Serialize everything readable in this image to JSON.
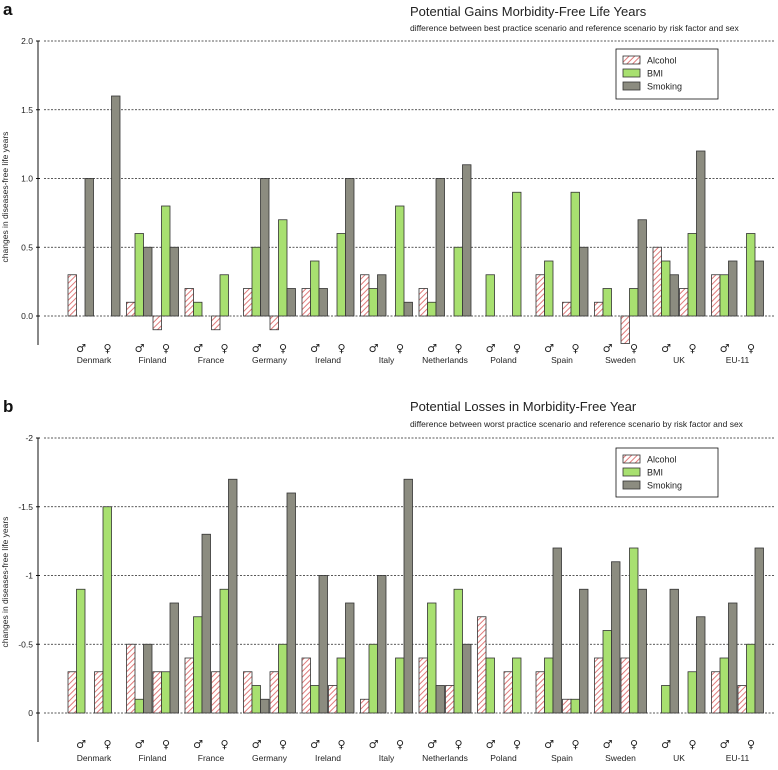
{
  "chart_data": [
    {
      "type": "bar",
      "panel_label": "a",
      "title": "Potential Gains Morbidity-Free Life Years",
      "subtitle": "difference between best practice scenario and reference scenario by risk factor and sex",
      "ylabel": "changes in diseases-free life years",
      "ylim": [
        -0.2,
        2.0
      ],
      "yticks": [
        0.0,
        0.5,
        1.0,
        1.5,
        2.0
      ],
      "ytick_labels": [
        "0.0",
        "0.5",
        "1.0",
        "1.5",
        "2.0"
      ],
      "categories": [
        "Denmark",
        "Finland",
        "France",
        "Germany",
        "Ireland",
        "Italy",
        "Netherlands",
        "Poland",
        "Spain",
        "Sweden",
        "UK",
        "EU-11"
      ],
      "sex_labels": [
        "♂",
        "♀"
      ],
      "legend": [
        "Alcohol",
        "BMI",
        "Smoking"
      ],
      "series": [
        {
          "name": "Alcohol",
          "values": [
            [
              0.3,
              0
            ],
            [
              0.1,
              -0.1
            ],
            [
              0.2,
              -0.1
            ],
            [
              0.2,
              -0.1
            ],
            [
              0.2,
              0
            ],
            [
              0.3,
              0
            ],
            [
              0.2,
              0
            ],
            [
              0,
              0
            ],
            [
              0.3,
              0.1
            ],
            [
              0.1,
              -0.2
            ],
            [
              0.5,
              0.2
            ],
            [
              0.3,
              0
            ]
          ]
        },
        {
          "name": "BMI",
          "values": [
            [
              0,
              0
            ],
            [
              0.6,
              0.8
            ],
            [
              0.1,
              0.3
            ],
            [
              0.5,
              0.7
            ],
            [
              0.4,
              0.6
            ],
            [
              0.2,
              0.8
            ],
            [
              0.1,
              0.5
            ],
            [
              0.3,
              0.9
            ],
            [
              0.4,
              0.9
            ],
            [
              0.2,
              0.2
            ],
            [
              0.4,
              0.6
            ],
            [
              0.3,
              0.6
            ]
          ]
        },
        {
          "name": "Smoking",
          "values": [
            [
              1.0,
              1.6
            ],
            [
              0.5,
              0.5
            ],
            [
              0,
              0
            ],
            [
              1.0,
              0.2
            ],
            [
              0.2,
              1.0
            ],
            [
              0.3,
              0.1
            ],
            [
              1.0,
              1.1
            ],
            [
              0,
              0
            ],
            [
              0,
              0.5
            ],
            [
              0,
              0.7
            ],
            [
              0.3,
              1.2
            ],
            [
              0.4,
              0.4
            ]
          ]
        }
      ]
    },
    {
      "type": "bar",
      "panel_label": "b",
      "title": "Potential Losses in Morbidity-Free Year",
      "subtitle": "difference between worst practice scenario and reference scenario by risk factor and sex",
      "ylabel": "changes in diseases-free life years",
      "ylim": [
        0.2,
        -2.0
      ],
      "yticks": [
        0,
        -0.5,
        -1,
        -1.5,
        -2
      ],
      "ytick_labels": [
        "0",
        "-0.5",
        "-1",
        "-1.5",
        "-2"
      ],
      "categories": [
        "Denmark",
        "Finland",
        "France",
        "Germany",
        "Ireland",
        "Italy",
        "Netherlands",
        "Poland",
        "Spain",
        "Sweden",
        "UK",
        "EU-11"
      ],
      "sex_labels": [
        "♂",
        "♀"
      ],
      "legend": [
        "Alcohol",
        "BMI",
        "Smoking"
      ],
      "series": [
        {
          "name": "Alcohol",
          "values": [
            [
              -0.3,
              -0.3
            ],
            [
              -0.5,
              -0.3
            ],
            [
              -0.4,
              -0.3
            ],
            [
              -0.3,
              -0.3
            ],
            [
              -0.4,
              -0.2
            ],
            [
              -0.1,
              0
            ],
            [
              -0.4,
              -0.2
            ],
            [
              -0.7,
              -0.3
            ],
            [
              -0.3,
              -0.1
            ],
            [
              -0.4,
              -0.4
            ],
            [
              0,
              0
            ],
            [
              -0.3,
              -0.2
            ]
          ]
        },
        {
          "name": "BMI",
          "values": [
            [
              -0.9,
              -1.5
            ],
            [
              -0.1,
              -0.3
            ],
            [
              -0.7,
              -0.9
            ],
            [
              -0.2,
              -0.5
            ],
            [
              -0.2,
              -0.4
            ],
            [
              -0.5,
              -0.4
            ],
            [
              -0.8,
              -0.9
            ],
            [
              -0.4,
              -0.4
            ],
            [
              -0.4,
              -0.1
            ],
            [
              -0.6,
              -1.2
            ],
            [
              -0.2,
              -0.3
            ],
            [
              -0.4,
              -0.5
            ]
          ]
        },
        {
          "name": "Smoking",
          "values": [
            [
              0,
              0
            ],
            [
              -0.5,
              -0.8
            ],
            [
              -1.3,
              -1.7
            ],
            [
              -0.1,
              -1.6
            ],
            [
              -1.0,
              -0.8
            ],
            [
              -1.0,
              -1.7
            ],
            [
              -0.2,
              -0.5
            ],
            [
              0,
              0
            ],
            [
              -1.2,
              -0.9
            ],
            [
              -1.1,
              -0.9
            ],
            [
              -0.9,
              -0.7
            ],
            [
              -0.8,
              -1.2
            ]
          ]
        }
      ]
    }
  ],
  "colors": {
    "alcohol_hatch": "#e08080",
    "bmi": "#a8e070",
    "smoking": "#8c8c80",
    "bar_edge": "#333333",
    "grid": "#222222"
  }
}
